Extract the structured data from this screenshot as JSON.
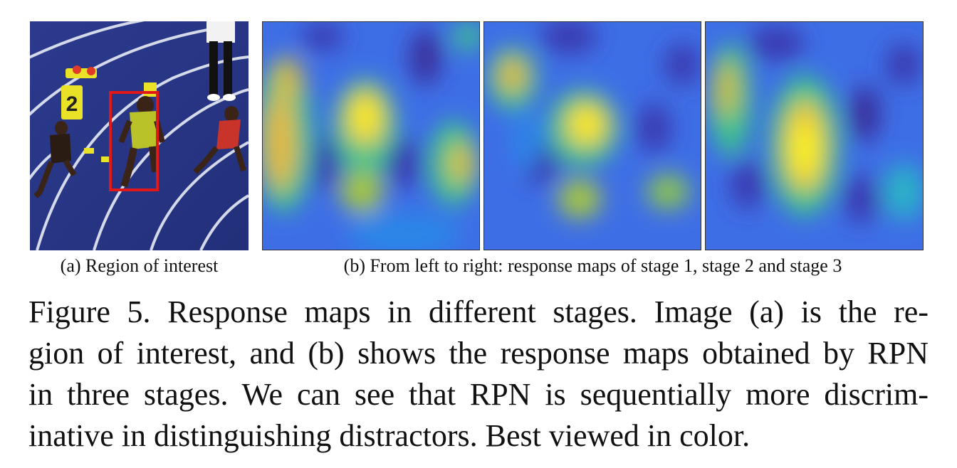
{
  "figure": {
    "subcaption_a": "(a) Region of interest",
    "subcaption_b": "(b) From left to right: response maps of stage 1, stage 2 and stage 3",
    "caption_lines": [
      "Figure 5. Response maps in different stages.  Image (a) is the re-",
      "gion of interest, and (b) shows the response maps obtained by RPN",
      "in three stages. We can see that RPN is sequentially more discrim-",
      "inative in distinguishing distractors. Best viewed in color."
    ],
    "roi_image": {
      "lane_number_text": "2",
      "scene": "runners-on-track",
      "highlight_color": "#e01818"
    },
    "colormap": [
      "#3b2f9a",
      "#3b55d6",
      "#2a86e8",
      "#1fb2c4",
      "#3cc48c",
      "#a8c83c",
      "#f5c02a",
      "#fbf51c"
    ]
  }
}
